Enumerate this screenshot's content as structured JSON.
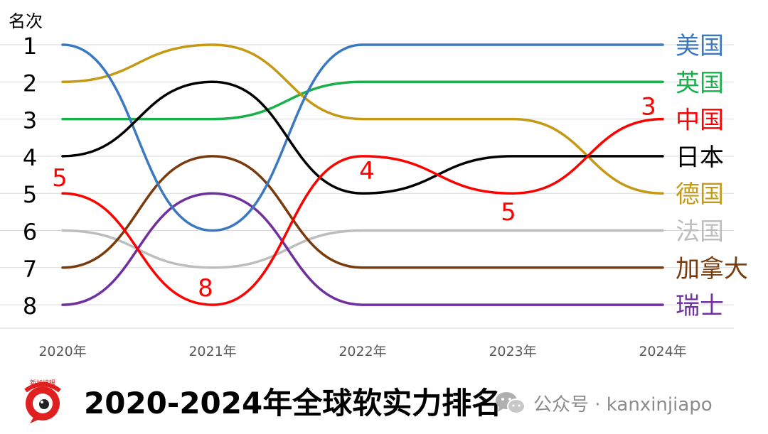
{
  "chart_data": {
    "type": "line",
    "ylabel": "名次",
    "x": [
      "2020年",
      "2021年",
      "2022年",
      "2023年",
      "2024年"
    ],
    "y_ticks": [
      "1",
      "2",
      "3",
      "4",
      "5",
      "6",
      "7",
      "8"
    ],
    "ylim": [
      1,
      8
    ],
    "y_inverted": true,
    "grid": true,
    "legend_placement": "right",
    "series": [
      {
        "name": "美国",
        "color": "#3b78c0",
        "values": [
          1,
          6,
          1,
          1,
          1
        ]
      },
      {
        "name": "英国",
        "color": "#19b04b",
        "values": [
          3,
          3,
          2,
          2,
          2
        ]
      },
      {
        "name": "中国",
        "color": "#ff0000",
        "values": [
          5,
          8,
          4,
          5,
          3
        ]
      },
      {
        "name": "日本",
        "color": "#000000",
        "values": [
          4,
          2,
          5,
          4,
          4
        ]
      },
      {
        "name": "德国",
        "color": "#c49a14",
        "values": [
          2,
          1,
          3,
          3,
          5
        ]
      },
      {
        "name": "法国",
        "color": "#bdbdbd",
        "values": [
          6,
          7,
          6,
          6,
          6
        ]
      },
      {
        "name": "加拿大",
        "color": "#7a3b0c",
        "values": [
          7,
          4,
          7,
          7,
          7
        ]
      },
      {
        "name": "瑞士",
        "color": "#7030a0",
        "values": [
          8,
          5,
          8,
          8,
          8
        ]
      }
    ],
    "annotations": [
      {
        "series": "中国",
        "x": "2020年",
        "text": "5"
      },
      {
        "series": "中国",
        "x": "2021年",
        "text": "8"
      },
      {
        "series": "中国",
        "x": "2022年",
        "text": "4"
      },
      {
        "series": "中国",
        "x": "2023年",
        "text": "5"
      },
      {
        "series": "中国",
        "x": "2024年",
        "text": "3"
      }
    ]
  },
  "footer": {
    "title": "2020-2024年全球软实力排名",
    "logo_text": "新加坡眼",
    "account": "公众号 · kanxinjiapo",
    "logo_color": "#e02020"
  }
}
